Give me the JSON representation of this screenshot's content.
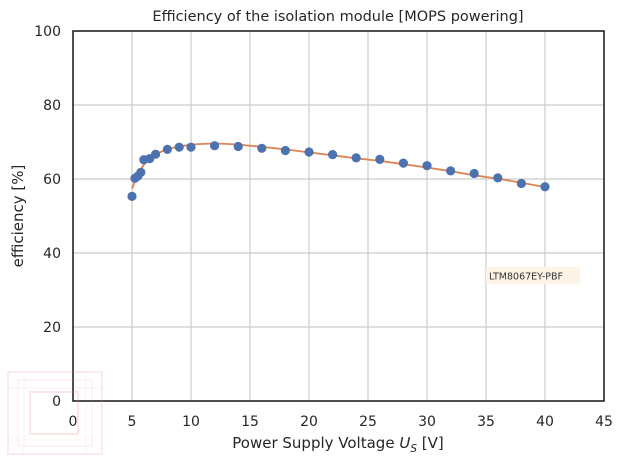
{
  "chart_data": {
    "type": "scatter",
    "title": "Efficiency of the isolation module [MOPS powering]",
    "xlabel_main": "Power Supply Voltage ",
    "xlabel_symbol": "U",
    "xlabel_sub": "S",
    "xlabel_unit": " [V]",
    "ylabel": "efficiency [%]",
    "xlim": [
      0,
      45
    ],
    "ylim": [
      0,
      100
    ],
    "xticks": [
      0,
      5,
      10,
      15,
      20,
      25,
      30,
      35,
      40,
      45
    ],
    "yticks": [
      0,
      20,
      40,
      60,
      80,
      100
    ],
    "grid": true,
    "annotation": "LTM8067EY-PBF",
    "colors": {
      "markers": "#4c72b0",
      "fit": "#dd8452",
      "grid": "#cccccc",
      "frame": "#262626",
      "annotation_bg": "#fdf3e7"
    },
    "series": [
      {
        "kind": "measured",
        "x": [
          5.0,
          5.25,
          5.5,
          5.75,
          6.0,
          6.5,
          7.0,
          8.0,
          9.0,
          10.0,
          12.0,
          14.0,
          16.0,
          18.0,
          20.0,
          22.0,
          24.0,
          26.0,
          28.0,
          30.0,
          32.0,
          34.0,
          36.0,
          38.0,
          40.0
        ],
        "y": [
          55.3,
          60.2,
          60.8,
          61.8,
          65.2,
          65.5,
          66.7,
          68.0,
          68.6,
          68.6,
          69.0,
          68.8,
          68.3,
          67.7,
          67.3,
          66.6,
          65.7,
          65.3,
          64.3,
          63.6,
          62.2,
          61.5,
          60.3,
          58.8,
          57.9
        ]
      },
      {
        "kind": "fit",
        "x": [
          5.0,
          5.5,
          6.0,
          7.0,
          8.0,
          9.0,
          10.0,
          11.0,
          12.0,
          13.0,
          14.0,
          16.0,
          18.0,
          20.0,
          22.0,
          24.0,
          26.0,
          28.0,
          30.0,
          32.0,
          34.0,
          36.0,
          38.0,
          40.0
        ],
        "y": [
          57.4,
          61.3,
          63.9,
          66.7,
          68.1,
          68.8,
          69.3,
          69.5,
          69.6,
          69.5,
          69.3,
          68.7,
          68.0,
          67.2,
          66.4,
          65.6,
          64.9,
          64.0,
          63.1,
          62.1,
          61.0,
          60.1,
          59.0,
          57.8
        ]
      }
    ]
  }
}
